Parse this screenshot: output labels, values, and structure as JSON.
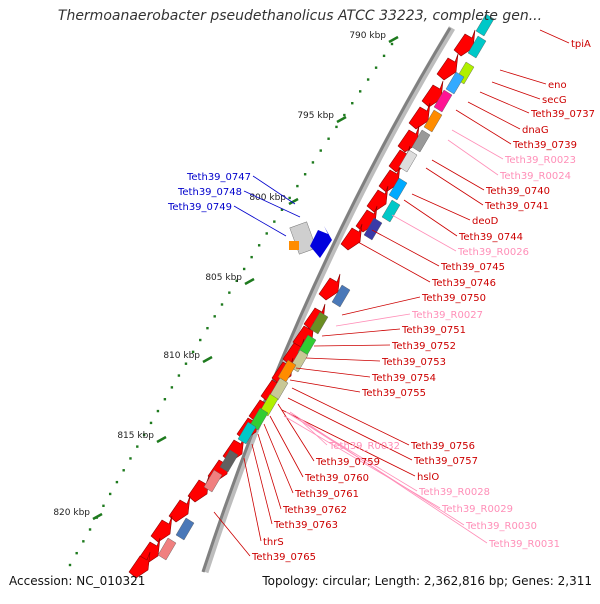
{
  "title": "Thermoanaerobacter pseudethanolicus ATCC 33223, complete gen...",
  "accession": "Accession: NC_010321",
  "topology": "Topology: circular; Length: 2,362,816 bp; Genes: 2,311",
  "colors": {
    "forward": "#ff0000",
    "rna": "#ff8fb8",
    "left_label": "#0000cc",
    "backbone": "#808080",
    "tick": "#1e7a1e"
  },
  "scale_ticks": [
    "790 kbp",
    "795 kbp",
    "800 kbp",
    "805 kbp",
    "810 kbp",
    "815 kbp",
    "820 kbp"
  ],
  "left_labels": [
    "Teth39_0747",
    "Teth39_0748",
    "Teth39_0749"
  ],
  "right_labels": [
    {
      "text": "tpiA",
      "type": "cds"
    },
    {
      "text": "eno",
      "type": "cds"
    },
    {
      "text": "secG",
      "type": "cds"
    },
    {
      "text": "Teth39_0737",
      "type": "cds"
    },
    {
      "text": "dnaG",
      "type": "cds"
    },
    {
      "text": "Teth39_0739",
      "type": "cds"
    },
    {
      "text": "Teth39_R0023",
      "type": "rna"
    },
    {
      "text": "Teth39_R0024",
      "type": "rna"
    },
    {
      "text": "Teth39_0740",
      "type": "cds"
    },
    {
      "text": "Teth39_0741",
      "type": "cds"
    },
    {
      "text": "deoD",
      "type": "cds"
    },
    {
      "text": "Teth39_0744",
      "type": "cds"
    },
    {
      "text": "Teth39_R0026",
      "type": "rna"
    },
    {
      "text": "Teth39_0745",
      "type": "cds"
    },
    {
      "text": "Teth39_0746",
      "type": "cds"
    },
    {
      "text": "Teth39_0750",
      "type": "cds"
    },
    {
      "text": "Teth39_R0027",
      "type": "rna"
    },
    {
      "text": "Teth39_0751",
      "type": "cds"
    },
    {
      "text": "Teth39_0752",
      "type": "cds"
    },
    {
      "text": "Teth39_0753",
      "type": "cds"
    },
    {
      "text": "Teth39_0754",
      "type": "cds"
    },
    {
      "text": "Teth39_0755",
      "type": "cds"
    },
    {
      "text": "Teth39_R0032",
      "type": "rna"
    },
    {
      "text": "Teth39_0756",
      "type": "cds"
    },
    {
      "text": "Teth39_0757",
      "type": "cds"
    },
    {
      "text": "Teth39_0759",
      "type": "cds"
    },
    {
      "text": "hslO",
      "type": "cds"
    },
    {
      "text": "Teth39_0760",
      "type": "cds"
    },
    {
      "text": "Teth39_R0028",
      "type": "rna"
    },
    {
      "text": "Teth39_0761",
      "type": "cds"
    },
    {
      "text": "Teth39_R0029",
      "type": "rna"
    },
    {
      "text": "Teth39_0762",
      "type": "cds"
    },
    {
      "text": "Teth39_R0030",
      "type": "rna"
    },
    {
      "text": "Teth39_0763",
      "type": "cds"
    },
    {
      "text": "thrS",
      "type": "cds"
    },
    {
      "text": "Teth39_R0031",
      "type": "rna"
    },
    {
      "text": "Teth39_0765",
      "type": "cds"
    }
  ]
}
